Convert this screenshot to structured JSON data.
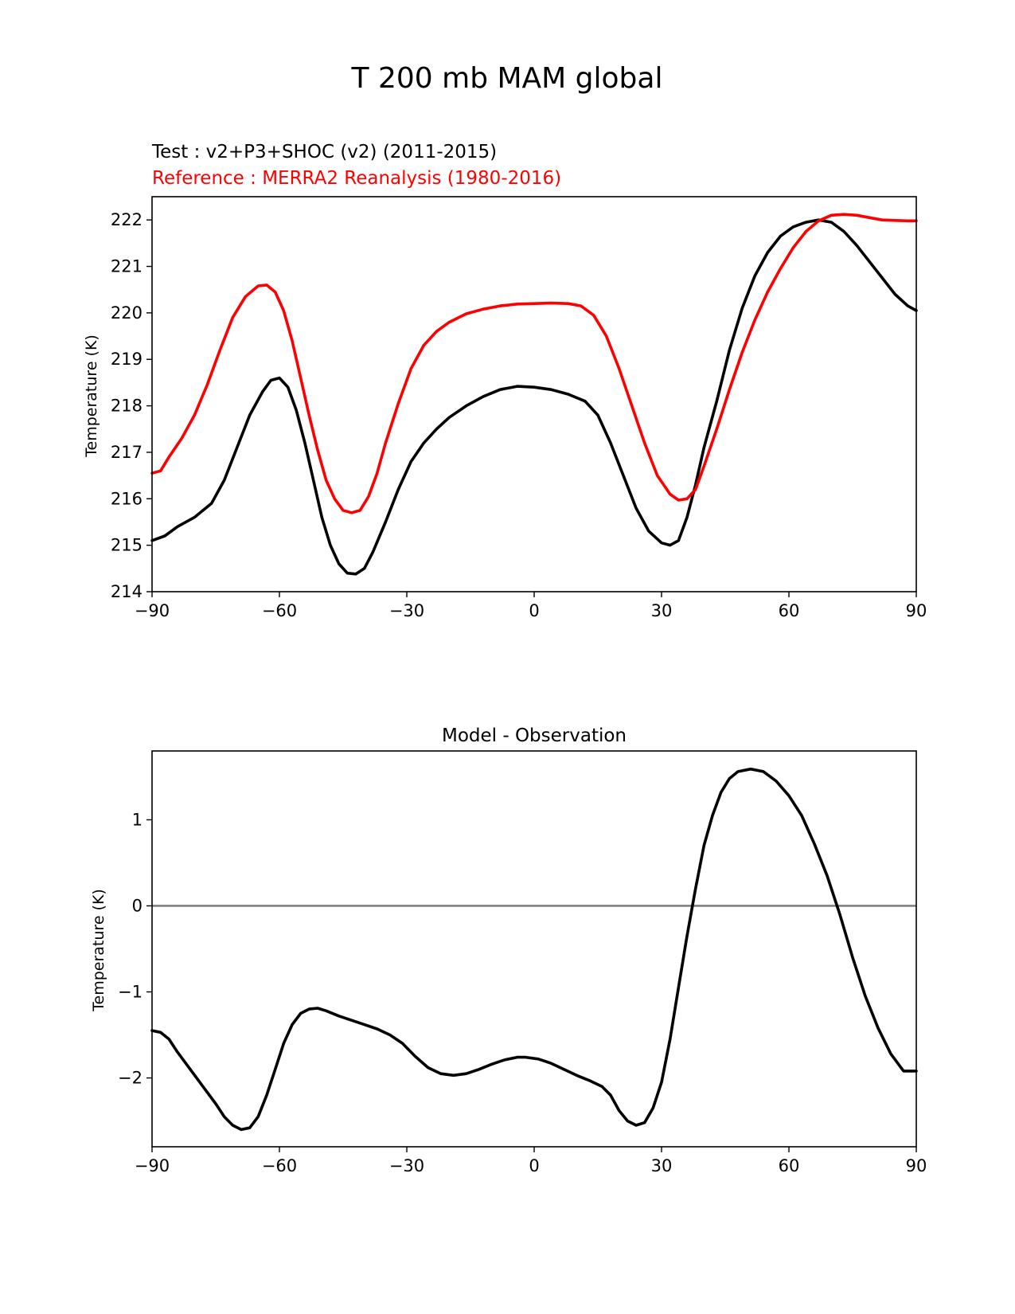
{
  "figure": {
    "title": "T 200 mb MAM global"
  },
  "chart_data": [
    {
      "type": "line",
      "title_test": "Test : v2+P3+SHOC (v2) (2011-2015)",
      "title_reference": "Reference : MERRA2 Reanalysis (1980-2016)",
      "xlabel": "",
      "ylabel": "Temperature (K)",
      "xlim": [
        -90,
        90
      ],
      "ylim": [
        214,
        222.5
      ],
      "xticks": [
        -90,
        -60,
        -30,
        0,
        30,
        60,
        90
      ],
      "xtick_labels": [
        "−90",
        "−60",
        "−30",
        "0",
        "30",
        "60",
        "90"
      ],
      "yticks": [
        214,
        215,
        216,
        217,
        218,
        219,
        220,
        221,
        222
      ],
      "ytick_labels": [
        "214",
        "215",
        "216",
        "217",
        "218",
        "219",
        "220",
        "221",
        "222"
      ],
      "series": [
        {
          "name": "Test",
          "color": "#000000",
          "points": [
            [
              -90,
              215.1
            ],
            [
              -87,
              215.2
            ],
            [
              -84,
              215.4
            ],
            [
              -80,
              215.6
            ],
            [
              -76,
              215.9
            ],
            [
              -73,
              216.4
            ],
            [
              -70,
              217.1
            ],
            [
              -67,
              217.8
            ],
            [
              -64,
              218.3
            ],
            [
              -62,
              218.55
            ],
            [
              -60,
              218.6
            ],
            [
              -58,
              218.4
            ],
            [
              -56,
              217.9
            ],
            [
              -54,
              217.2
            ],
            [
              -52,
              216.4
            ],
            [
              -50,
              215.6
            ],
            [
              -48,
              215.0
            ],
            [
              -46,
              214.6
            ],
            [
              -44,
              214.4
            ],
            [
              -42,
              214.38
            ],
            [
              -40,
              214.5
            ],
            [
              -38,
              214.85
            ],
            [
              -35,
              215.5
            ],
            [
              -32,
              216.2
            ],
            [
              -29,
              216.8
            ],
            [
              -26,
              217.2
            ],
            [
              -23,
              217.5
            ],
            [
              -20,
              217.75
            ],
            [
              -16,
              218.0
            ],
            [
              -12,
              218.2
            ],
            [
              -8,
              218.35
            ],
            [
              -4,
              218.42
            ],
            [
              0,
              218.4
            ],
            [
              4,
              218.35
            ],
            [
              8,
              218.25
            ],
            [
              12,
              218.1
            ],
            [
              15,
              217.8
            ],
            [
              18,
              217.2
            ],
            [
              21,
              216.5
            ],
            [
              24,
              215.8
            ],
            [
              27,
              215.3
            ],
            [
              30,
              215.05
            ],
            [
              32,
              215.0
            ],
            [
              34,
              215.1
            ],
            [
              36,
              215.6
            ],
            [
              38,
              216.3
            ],
            [
              40,
              217.1
            ],
            [
              43,
              218.1
            ],
            [
              46,
              219.2
            ],
            [
              49,
              220.1
            ],
            [
              52,
              220.8
            ],
            [
              55,
              221.3
            ],
            [
              58,
              221.65
            ],
            [
              61,
              221.85
            ],
            [
              64,
              221.95
            ],
            [
              67,
              222.0
            ],
            [
              70,
              221.95
            ],
            [
              73,
              221.75
            ],
            [
              76,
              221.45
            ],
            [
              79,
              221.1
            ],
            [
              82,
              220.75
            ],
            [
              85,
              220.4
            ],
            [
              88,
              220.15
            ],
            [
              90,
              220.05
            ]
          ]
        },
        {
          "name": "Reference",
          "color": "#ff0000",
          "points": [
            [
              -90,
              216.55
            ],
            [
              -88,
              216.6
            ],
            [
              -86,
              216.9
            ],
            [
              -83,
              217.3
            ],
            [
              -80,
              217.8
            ],
            [
              -77,
              218.45
            ],
            [
              -74,
              219.2
            ],
            [
              -71,
              219.9
            ],
            [
              -68,
              220.35
            ],
            [
              -65,
              220.58
            ],
            [
              -63,
              220.6
            ],
            [
              -61,
              220.45
            ],
            [
              -59,
              220.05
            ],
            [
              -57,
              219.4
            ],
            [
              -55,
              218.6
            ],
            [
              -53,
              217.8
            ],
            [
              -51,
              217.05
            ],
            [
              -49,
              216.4
            ],
            [
              -47,
              216.0
            ],
            [
              -45,
              215.75
            ],
            [
              -43,
              215.7
            ],
            [
              -41,
              215.75
            ],
            [
              -39,
              216.05
            ],
            [
              -37,
              216.55
            ],
            [
              -35,
              217.2
            ],
            [
              -32,
              218.05
            ],
            [
              -29,
              218.8
            ],
            [
              -26,
              219.3
            ],
            [
              -23,
              219.6
            ],
            [
              -20,
              219.8
            ],
            [
              -16,
              219.98
            ],
            [
              -12,
              220.08
            ],
            [
              -8,
              220.15
            ],
            [
              -4,
              220.19
            ],
            [
              0,
              220.2
            ],
            [
              4,
              220.21
            ],
            [
              8,
              220.2
            ],
            [
              11,
              220.15
            ],
            [
              14,
              219.95
            ],
            [
              17,
              219.5
            ],
            [
              20,
              218.8
            ],
            [
              23,
              218.0
            ],
            [
              26,
              217.2
            ],
            [
              29,
              216.5
            ],
            [
              32,
              216.1
            ],
            [
              34,
              215.97
            ],
            [
              36,
              216.0
            ],
            [
              38,
              216.2
            ],
            [
              40,
              216.7
            ],
            [
              43,
              217.5
            ],
            [
              46,
              218.35
            ],
            [
              49,
              219.15
            ],
            [
              52,
              219.85
            ],
            [
              55,
              220.45
            ],
            [
              58,
              220.95
            ],
            [
              61,
              221.4
            ],
            [
              64,
              221.75
            ],
            [
              67,
              221.98
            ],
            [
              70,
              222.1
            ],
            [
              73,
              222.12
            ],
            [
              76,
              222.1
            ],
            [
              79,
              222.05
            ],
            [
              82,
              222.0
            ],
            [
              85,
              221.99
            ],
            [
              88,
              221.98
            ],
            [
              90,
              221.98
            ]
          ]
        }
      ]
    },
    {
      "type": "line",
      "title": "Model - Observation",
      "xlabel": "",
      "ylabel": "Temperature (K)",
      "xlim": [
        -90,
        90
      ],
      "ylim": [
        -2.8,
        1.8
      ],
      "xticks": [
        -90,
        -60,
        -30,
        0,
        30,
        60,
        90
      ],
      "xtick_labels": [
        "−90",
        "−60",
        "−30",
        "0",
        "30",
        "60",
        "90"
      ],
      "yticks": [
        -2,
        -1,
        0,
        1
      ],
      "ytick_labels": [
        "−2",
        "−1",
        "0",
        "1"
      ],
      "zero_line": {
        "value": 0,
        "color": "#808080"
      },
      "series": [
        {
          "name": "Model - Observation",
          "color": "#000000",
          "points": [
            [
              -90,
              -1.45
            ],
            [
              -88,
              -1.47
            ],
            [
              -86,
              -1.55
            ],
            [
              -84,
              -1.7
            ],
            [
              -81,
              -1.9
            ],
            [
              -78,
              -2.1
            ],
            [
              -75,
              -2.3
            ],
            [
              -73,
              -2.45
            ],
            [
              -71,
              -2.55
            ],
            [
              -69,
              -2.6
            ],
            [
              -67,
              -2.58
            ],
            [
              -65,
              -2.45
            ],
            [
              -63,
              -2.2
            ],
            [
              -61,
              -1.9
            ],
            [
              -59,
              -1.6
            ],
            [
              -57,
              -1.38
            ],
            [
              -55,
              -1.25
            ],
            [
              -53,
              -1.2
            ],
            [
              -51,
              -1.19
            ],
            [
              -49,
              -1.22
            ],
            [
              -46,
              -1.28
            ],
            [
              -43,
              -1.33
            ],
            [
              -40,
              -1.38
            ],
            [
              -37,
              -1.43
            ],
            [
              -34,
              -1.5
            ],
            [
              -31,
              -1.6
            ],
            [
              -28,
              -1.75
            ],
            [
              -25,
              -1.88
            ],
            [
              -22,
              -1.95
            ],
            [
              -19,
              -1.97
            ],
            [
              -16,
              -1.95
            ],
            [
              -13,
              -1.9
            ],
            [
              -10,
              -1.84
            ],
            [
              -7,
              -1.79
            ],
            [
              -4,
              -1.76
            ],
            [
              -2,
              -1.76
            ],
            [
              1,
              -1.78
            ],
            [
              4,
              -1.83
            ],
            [
              7,
              -1.9
            ],
            [
              10,
              -1.97
            ],
            [
              13,
              -2.03
            ],
            [
              16,
              -2.1
            ],
            [
              18,
              -2.2
            ],
            [
              20,
              -2.38
            ],
            [
              22,
              -2.5
            ],
            [
              24,
              -2.55
            ],
            [
              26,
              -2.52
            ],
            [
              28,
              -2.35
            ],
            [
              30,
              -2.05
            ],
            [
              32,
              -1.55
            ],
            [
              34,
              -0.95
            ],
            [
              36,
              -0.35
            ],
            [
              38,
              0.2
            ],
            [
              40,
              0.7
            ],
            [
              42,
              1.05
            ],
            [
              44,
              1.32
            ],
            [
              46,
              1.48
            ],
            [
              48,
              1.56
            ],
            [
              51,
              1.59
            ],
            [
              54,
              1.56
            ],
            [
              57,
              1.45
            ],
            [
              60,
              1.28
            ],
            [
              63,
              1.05
            ],
            [
              66,
              0.72
            ],
            [
              69,
              0.35
            ],
            [
              72,
              -0.1
            ],
            [
              75,
              -0.6
            ],
            [
              78,
              -1.05
            ],
            [
              81,
              -1.42
            ],
            [
              84,
              -1.72
            ],
            [
              87,
              -1.92
            ],
            [
              90,
              -1.92
            ]
          ]
        }
      ]
    }
  ]
}
